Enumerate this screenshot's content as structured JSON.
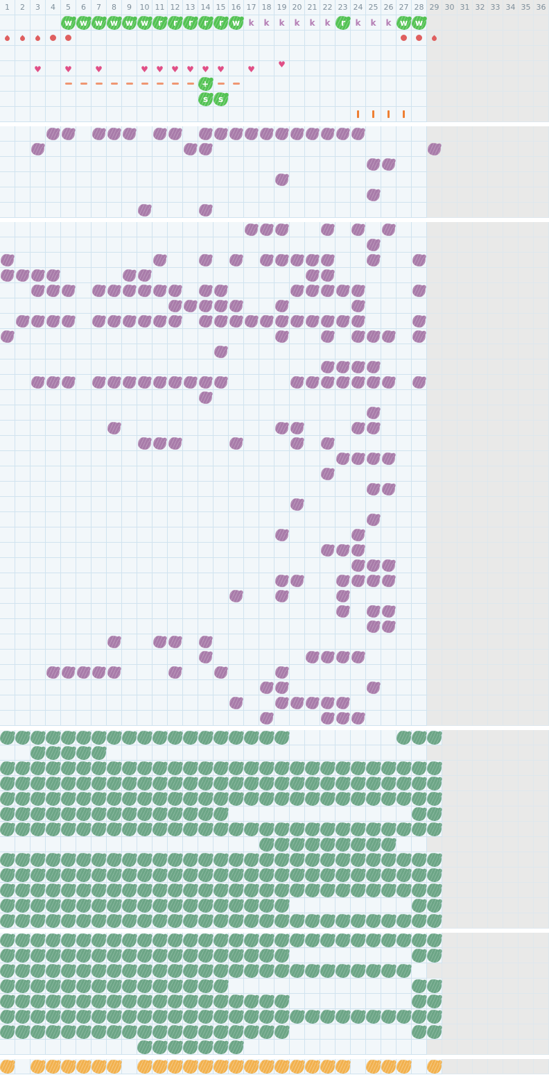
{
  "header": {
    "days": [
      1,
      2,
      3,
      4,
      5,
      6,
      7,
      8,
      9,
      10,
      11,
      12,
      13,
      14,
      15,
      16,
      17,
      18,
      19,
      20,
      21,
      22,
      23,
      24,
      25,
      26,
      27,
      28,
      29,
      30,
      31,
      32,
      33,
      34,
      35,
      36
    ],
    "active_len": 28
  },
  "glyphs": {
    "heart": "♥"
  },
  "colors": {
    "active_bg": "#f2f7fa",
    "inactive_bg": "#e9e9e8",
    "grid_line": "#d0e3ef",
    "badge_green": "#53c253",
    "k_letter": "#b57fb5",
    "flow_red": "#df5f5f",
    "heart_pink": "#e04f86",
    "dash_salmon": "#ef9672",
    "tick_orange": "#ee7f33",
    "history_purple": "#a87ba9",
    "history_sage": "#6ca586",
    "history_orange": "#f2b14e",
    "header_text": "#7e8f9b"
  },
  "sections": [
    {
      "id": "current-cycle",
      "kind": "symbols",
      "active_len": 28,
      "rows": [
        {
          "name": "activity-row",
          "marks": [
            {
              "c": 5,
              "t": "blob",
              "l": "w"
            },
            {
              "c": 6,
              "t": "blob",
              "l": "w"
            },
            {
              "c": 7,
              "t": "blob",
              "l": "w"
            },
            {
              "c": 8,
              "t": "blob",
              "l": "w"
            },
            {
              "c": 9,
              "t": "blob",
              "l": "w"
            },
            {
              "c": 10,
              "t": "blob",
              "l": "w"
            },
            {
              "c": 11,
              "t": "blob",
              "l": "r"
            },
            {
              "c": 12,
              "t": "blob",
              "l": "r"
            },
            {
              "c": 13,
              "t": "blob",
              "l": "r"
            },
            {
              "c": 14,
              "t": "blob",
              "l": "r"
            },
            {
              "c": 15,
              "t": "blob",
              "l": "r"
            },
            {
              "c": 16,
              "t": "blob",
              "l": "w"
            },
            {
              "c": 17,
              "t": "k",
              "l": "k"
            },
            {
              "c": 18,
              "t": "k",
              "l": "k"
            },
            {
              "c": 19,
              "t": "k",
              "l": "k"
            },
            {
              "c": 20,
              "t": "k",
              "l": "k"
            },
            {
              "c": 21,
              "t": "k",
              "l": "k"
            },
            {
              "c": 22,
              "t": "k",
              "l": "k"
            },
            {
              "c": 23,
              "t": "blob",
              "l": "r"
            },
            {
              "c": 24,
              "t": "k",
              "l": "k"
            },
            {
              "c": 25,
              "t": "k",
              "l": "k"
            },
            {
              "c": 26,
              "t": "k",
              "l": "k"
            },
            {
              "c": 27,
              "t": "blob",
              "l": "w"
            },
            {
              "c": 28,
              "t": "blob",
              "l": "w"
            }
          ]
        },
        {
          "name": "flow-row",
          "marks": [
            {
              "c": 1,
              "t": "drop"
            },
            {
              "c": 2,
              "t": "drop"
            },
            {
              "c": 3,
              "t": "drop"
            },
            {
              "c": 4,
              "t": "dot"
            },
            {
              "c": 5,
              "t": "dot"
            },
            {
              "c": 27,
              "t": "dot"
            },
            {
              "c": 28,
              "t": "dot"
            },
            {
              "c": 29,
              "t": "drop"
            }
          ]
        },
        {
          "name": "empty-row",
          "marks": []
        },
        {
          "name": "hearts-row",
          "marks": [
            {
              "c": 3,
              "t": "heart"
            },
            {
              "c": 5,
              "t": "heart"
            },
            {
              "c": 7,
              "t": "heart"
            },
            {
              "c": 10,
              "t": "heart"
            },
            {
              "c": 11,
              "t": "heart"
            },
            {
              "c": 12,
              "t": "heart"
            },
            {
              "c": 13,
              "t": "heart"
            },
            {
              "c": 14,
              "t": "heart"
            },
            {
              "c": 15,
              "t": "heart"
            },
            {
              "c": 17,
              "t": "heart"
            },
            {
              "c": 19,
              "t": "heart",
              "hi": true
            }
          ]
        },
        {
          "name": "test-row",
          "marks": [
            {
              "c": 5,
              "t": "dash"
            },
            {
              "c": 6,
              "t": "dash"
            },
            {
              "c": 7,
              "t": "dash"
            },
            {
              "c": 8,
              "t": "dash"
            },
            {
              "c": 9,
              "t": "dash"
            },
            {
              "c": 10,
              "t": "dash"
            },
            {
              "c": 11,
              "t": "dash"
            },
            {
              "c": 12,
              "t": "dash"
            },
            {
              "c": 13,
              "t": "dash"
            },
            {
              "c": 14,
              "t": "blob",
              "l": "+"
            },
            {
              "c": 15,
              "t": "dash"
            },
            {
              "c": 16,
              "t": "dash"
            }
          ]
        },
        {
          "name": "s-row",
          "marks": [
            {
              "c": 14,
              "t": "blob",
              "l": "s"
            },
            {
              "c": 15,
              "t": "blob",
              "l": "s"
            }
          ]
        },
        {
          "name": "tick-row",
          "marks": [
            {
              "c": 24,
              "t": "tick"
            },
            {
              "c": 25,
              "t": "tick"
            },
            {
              "c": 26,
              "t": "tick"
            },
            {
              "c": 27,
              "t": "tick"
            }
          ]
        }
      ]
    },
    {
      "id": "history-1",
      "kind": "marks",
      "mark": "purple",
      "rows": [
        {
          "len": 28,
          "runs": [
            [
              4,
              5
            ],
            [
              7,
              9
            ],
            [
              11,
              12
            ],
            [
              14,
              24
            ]
          ]
        },
        {
          "len": 28,
          "runs": [
            [
              3,
              3
            ],
            [
              13,
              14
            ],
            [
              29,
              29
            ]
          ]
        },
        {
          "len": 28,
          "runs": [
            [
              25,
              26
            ]
          ]
        },
        {
          "len": 28,
          "runs": [
            [
              19,
              19
            ]
          ]
        },
        {
          "len": 28,
          "runs": [
            [
              25,
              25
            ]
          ]
        },
        {
          "len": 28,
          "runs": [
            [
              10,
              10
            ],
            [
              14,
              14
            ]
          ]
        }
      ]
    },
    {
      "id": "history-2",
      "kind": "marks",
      "mark": "purple",
      "rows": [
        {
          "len": 28,
          "runs": [
            [
              17,
              19
            ],
            [
              22,
              22
            ],
            [
              24,
              24
            ],
            [
              26,
              26
            ]
          ]
        },
        {
          "len": 28,
          "runs": [
            [
              25,
              25
            ]
          ]
        },
        {
          "len": 28,
          "runs": [
            [
              1,
              1
            ],
            [
              11,
              11
            ],
            [
              14,
              14
            ],
            [
              16,
              16
            ],
            [
              18,
              22
            ],
            [
              25,
              25
            ],
            [
              28,
              28
            ]
          ]
        },
        {
          "len": 28,
          "runs": [
            [
              1,
              4
            ],
            [
              9,
              10
            ],
            [
              21,
              22
            ]
          ]
        },
        {
          "len": 28,
          "runs": [
            [
              3,
              5
            ],
            [
              7,
              12
            ],
            [
              14,
              15
            ],
            [
              20,
              24
            ],
            [
              28,
              28
            ]
          ]
        },
        {
          "len": 28,
          "runs": [
            [
              12,
              16
            ],
            [
              19,
              19
            ],
            [
              24,
              24
            ]
          ]
        },
        {
          "len": 28,
          "runs": [
            [
              2,
              5
            ],
            [
              7,
              12
            ],
            [
              14,
              24
            ],
            [
              28,
              28
            ]
          ]
        },
        {
          "len": 28,
          "runs": [
            [
              1,
              1
            ],
            [
              19,
              19
            ],
            [
              22,
              22
            ],
            [
              24,
              26
            ],
            [
              28,
              28
            ]
          ]
        },
        {
          "len": 28,
          "runs": [
            [
              15,
              15
            ]
          ]
        },
        {
          "len": 28,
          "runs": [
            [
              22,
              25
            ]
          ]
        },
        {
          "len": 28,
          "runs": [
            [
              3,
              5
            ],
            [
              7,
              15
            ],
            [
              20,
              26
            ],
            [
              28,
              28
            ]
          ]
        },
        {
          "len": 28,
          "runs": [
            [
              14,
              14
            ]
          ]
        },
        {
          "len": 28,
          "runs": [
            [
              25,
              25
            ]
          ]
        },
        {
          "len": 28,
          "runs": [
            [
              8,
              8
            ],
            [
              19,
              20
            ],
            [
              24,
              25
            ]
          ]
        },
        {
          "len": 28,
          "runs": [
            [
              10,
              12
            ],
            [
              16,
              16
            ],
            [
              20,
              20
            ],
            [
              22,
              22
            ]
          ]
        },
        {
          "len": 28,
          "runs": [
            [
              23,
              26
            ]
          ]
        },
        {
          "len": 28,
          "runs": [
            [
              22,
              22
            ]
          ]
        },
        {
          "len": 28,
          "runs": [
            [
              25,
              26
            ]
          ]
        },
        {
          "len": 28,
          "runs": [
            [
              20,
              20
            ]
          ]
        },
        {
          "len": 28,
          "runs": [
            [
              25,
              25
            ]
          ]
        },
        {
          "len": 28,
          "runs": [
            [
              19,
              19
            ],
            [
              24,
              24
            ]
          ]
        },
        {
          "len": 28,
          "runs": [
            [
              22,
              24
            ]
          ]
        },
        {
          "len": 28,
          "runs": [
            [
              24,
              26
            ]
          ]
        },
        {
          "len": 28,
          "runs": [
            [
              19,
              20
            ],
            [
              23,
              26
            ]
          ]
        },
        {
          "len": 28,
          "runs": [
            [
              16,
              16
            ],
            [
              19,
              19
            ],
            [
              23,
              23
            ]
          ]
        },
        {
          "len": 28,
          "runs": [
            [
              23,
              23
            ],
            [
              25,
              26
            ]
          ]
        },
        {
          "len": 28,
          "runs": [
            [
              25,
              26
            ]
          ]
        },
        {
          "len": 28,
          "runs": [
            [
              8,
              8
            ],
            [
              11,
              12
            ],
            [
              14,
              14
            ]
          ]
        },
        {
          "len": 28,
          "runs": [
            [
              14,
              14
            ],
            [
              21,
              24
            ]
          ]
        },
        {
          "len": 28,
          "runs": [
            [
              4,
              8
            ],
            [
              12,
              12
            ],
            [
              15,
              15
            ],
            [
              19,
              19
            ]
          ]
        },
        {
          "len": 28,
          "runs": [
            [
              18,
              19
            ],
            [
              25,
              25
            ]
          ]
        },
        {
          "len": 28,
          "runs": [
            [
              16,
              16
            ],
            [
              19,
              23
            ]
          ]
        },
        {
          "len": 28,
          "runs": [
            [
              18,
              18
            ],
            [
              22,
              24
            ]
          ]
        }
      ]
    },
    {
      "id": "history-3",
      "kind": "marks",
      "mark": "sage",
      "rows": [
        {
          "len": 29,
          "runs": [
            [
              1,
              19
            ],
            [
              27,
              29
            ]
          ]
        },
        {
          "len": 28,
          "runs": [
            [
              3,
              7
            ]
          ]
        },
        {
          "len": 29,
          "runs": [
            [
              1,
              29
            ]
          ]
        },
        {
          "len": 29,
          "runs": [
            [
              1,
              29
            ]
          ]
        },
        {
          "len": 29,
          "runs": [
            [
              1,
              29
            ]
          ]
        },
        {
          "len": 29,
          "runs": [
            [
              1,
              15
            ],
            [
              28,
              29
            ]
          ]
        },
        {
          "len": 29,
          "runs": [
            [
              1,
              29
            ]
          ]
        },
        {
          "len": 28,
          "runs": [
            [
              18,
              26
            ]
          ]
        },
        {
          "len": 29,
          "runs": [
            [
              1,
              29
            ]
          ]
        },
        {
          "len": 29,
          "runs": [
            [
              1,
              29
            ]
          ]
        },
        {
          "len": 29,
          "runs": [
            [
              1,
              29
            ]
          ]
        },
        {
          "len": 29,
          "runs": [
            [
              1,
              19
            ],
            [
              28,
              29
            ]
          ]
        },
        {
          "len": 29,
          "runs": [
            [
              1,
              29
            ]
          ]
        }
      ]
    },
    {
      "id": "history-4",
      "kind": "marks",
      "mark": "sage",
      "rows": [
        {
          "len": 29,
          "runs": [
            [
              1,
              29
            ]
          ]
        },
        {
          "len": 29,
          "runs": [
            [
              1,
              19
            ],
            [
              28,
              29
            ]
          ]
        },
        {
          "len": 28,
          "runs": [
            [
              1,
              27
            ]
          ]
        },
        {
          "len": 29,
          "runs": [
            [
              1,
              15
            ],
            [
              28,
              29
            ]
          ]
        },
        {
          "len": 29,
          "runs": [
            [
              1,
              19
            ],
            [
              28,
              29
            ]
          ]
        },
        {
          "len": 29,
          "runs": [
            [
              1,
              29
            ]
          ]
        },
        {
          "len": 29,
          "runs": [
            [
              1,
              19
            ],
            [
              28,
              29
            ]
          ]
        },
        {
          "len": 28,
          "runs": [
            [
              10,
              16
            ]
          ]
        }
      ]
    },
    {
      "id": "history-5",
      "kind": "marks",
      "mark": "orange",
      "rows": [
        {
          "len": 29,
          "runs": [
            [
              1,
              1
            ],
            [
              3,
              8
            ],
            [
              10,
              23
            ],
            [
              25,
              27
            ],
            [
              29,
              29
            ]
          ]
        }
      ]
    }
  ]
}
